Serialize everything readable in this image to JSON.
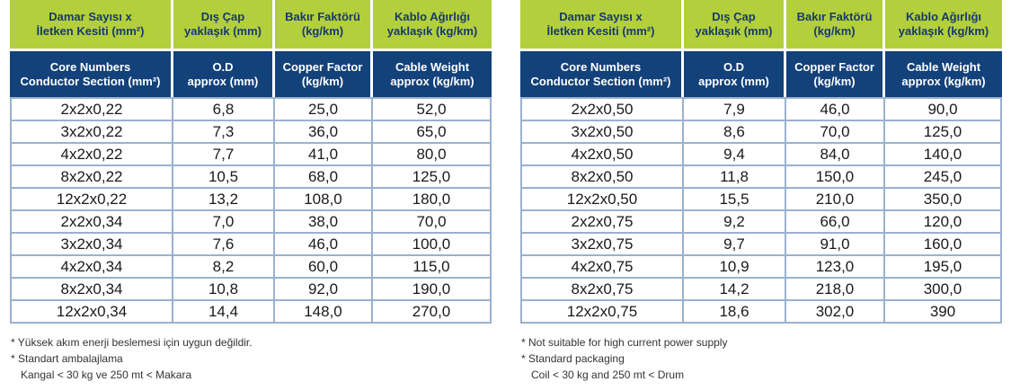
{
  "headers_tr": [
    [
      "Damar Sayısı x",
      "İletken Kesiti (mm²)"
    ],
    [
      "Dış Çap",
      "yaklaşık (mm)"
    ],
    [
      "Bakır Faktörü",
      "(kg/km)"
    ],
    [
      "Kablo Ağırlığı",
      "yaklaşık (kg/km)"
    ]
  ],
  "headers_en": [
    [
      "Core Numbers",
      "Conductor Section (mm²)"
    ],
    [
      "O.D",
      "approx (mm)"
    ],
    [
      "Copper Factor",
      "(kg/km)"
    ],
    [
      "Cable Weight",
      "approx (kg/km)"
    ]
  ],
  "left_rows": [
    [
      "2x2x0,22",
      "6,8",
      "25,0",
      "52,0"
    ],
    [
      "3x2x0,22",
      "7,3",
      "36,0",
      "65,0"
    ],
    [
      "4x2x0,22",
      "7,7",
      "41,0",
      "80,0"
    ],
    [
      "8x2x0,22",
      "10,5",
      "68,0",
      "125,0"
    ],
    [
      "12x2x0,22",
      "13,2",
      "108,0",
      "180,0"
    ],
    [
      "2x2x0,34",
      "7,0",
      "38,0",
      "70,0"
    ],
    [
      "3x2x0,34",
      "7,6",
      "46,0",
      "100,0"
    ],
    [
      "4x2x0,34",
      "8,2",
      "60,0",
      "115,0"
    ],
    [
      "8x2x0,34",
      "10,8",
      "92,0",
      "190,0"
    ],
    [
      "12x2x0,34",
      "14,4",
      "148,0",
      "270,0"
    ]
  ],
  "right_rows": [
    [
      "2x2x0,50",
      "7,9",
      "46,0",
      "90,0"
    ],
    [
      "3x2x0,50",
      "8,6",
      "70,0",
      "125,0"
    ],
    [
      "4x2x0,50",
      "9,4",
      "84,0",
      "140,0"
    ],
    [
      "8x2x0,50",
      "11,8",
      "150,0",
      "245,0"
    ],
    [
      "12x2x0,50",
      "15,5",
      "210,0",
      "350,0"
    ],
    [
      "2x2x0,75",
      "9,2",
      "66,0",
      "120,0"
    ],
    [
      "3x2x0,75",
      "9,7",
      "91,0",
      "160,0"
    ],
    [
      "4x2x0,75",
      "10,9",
      "123,0",
      "195,0"
    ],
    [
      "8x2x0,75",
      "14,2",
      "218,0",
      "300,0"
    ],
    [
      "12x2x0,75",
      "18,6",
      "302,0",
      "390"
    ]
  ],
  "notes_tr": [
    "* Yüksek akım enerji beslemesi için uygun değildir.",
    "* Standart ambalajlama",
    "Kangal < 30 kg ve 250 mt < Makara"
  ],
  "notes_en": [
    "* Not suitable for high current power supply",
    "* Standard packaging",
    "Coil < 30 kg and 250 mt < Drum"
  ],
  "colors": {
    "header_green": "#b3cf3b",
    "header_blue": "#13417a",
    "header_text": "#173a6e",
    "grid": "#9ab1cf"
  }
}
